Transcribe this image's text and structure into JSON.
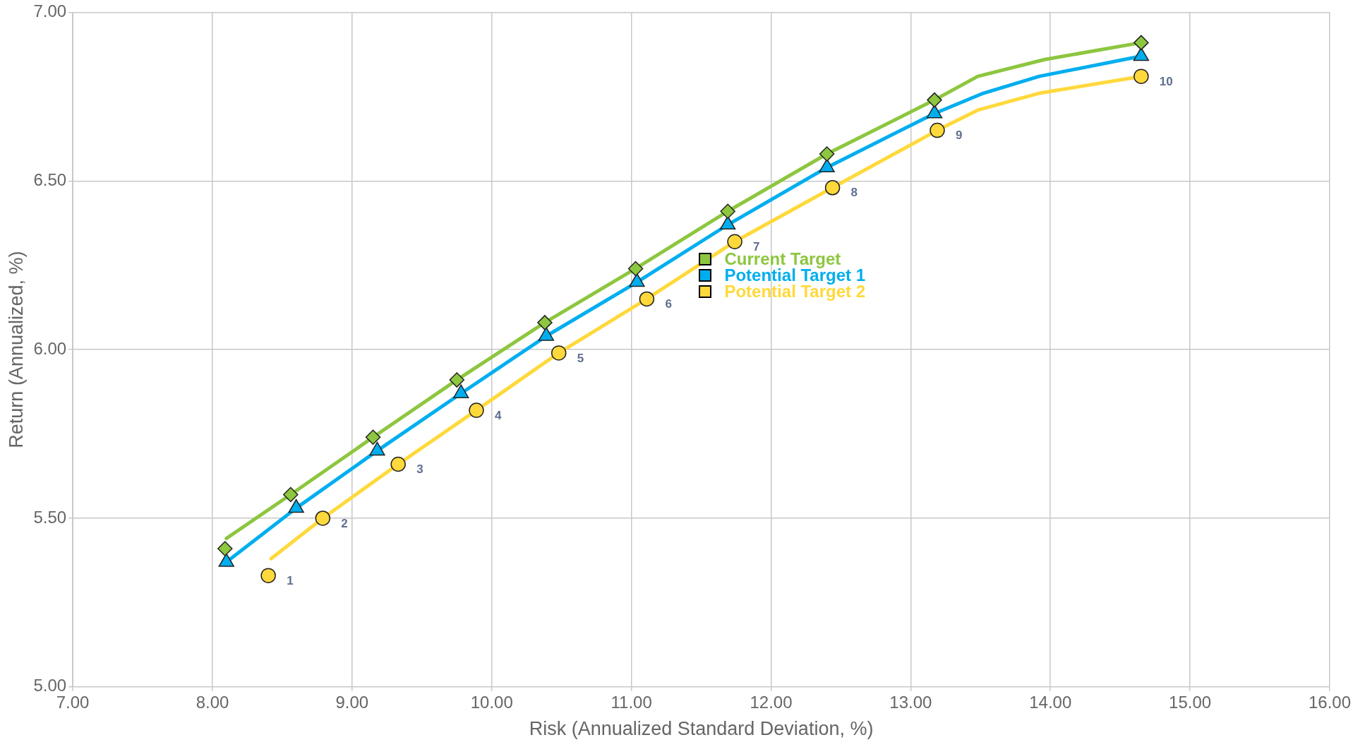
{
  "chart_data": {
    "type": "line",
    "xlabel": "Risk (Annualized Standard Deviation, %)",
    "ylabel": "Return (Annualized, %)",
    "xlim": [
      7,
      16
    ],
    "xticks": [
      {
        "value": 7,
        "label": "7.00"
      },
      {
        "value": 8,
        "label": "8.00"
      },
      {
        "value": 9,
        "label": "9.00"
      },
      {
        "value": 10,
        "label": "10.00"
      },
      {
        "value": 11,
        "label": "11.00"
      },
      {
        "value": 12,
        "label": "12.00"
      },
      {
        "value": 13,
        "label": "13.00"
      },
      {
        "value": 14,
        "label": "14.00"
      },
      {
        "value": 15,
        "label": "15.00"
      },
      {
        "value": 16,
        "label": "16.00"
      }
    ],
    "ylim": [
      5,
      7
    ],
    "yticks": [
      {
        "value": 5,
        "label": "5.00"
      },
      {
        "value": 5.5,
        "label": "5.50"
      },
      {
        "value": 6,
        "label": "6.00"
      },
      {
        "value": 6.5,
        "label": "6.50"
      },
      {
        "value": 7,
        "label": "7.00"
      }
    ],
    "grid": true,
    "legend": "center",
    "series": [
      {
        "name": "Current Target",
        "color": "#8dc63f",
        "marker": "none",
        "x": [
          8.1,
          8.56,
          9.15,
          9.75,
          10.38,
          11.03,
          11.69,
          12.4,
          13.17,
          13.48,
          13.96,
          14.65
        ],
        "values": [
          5.44,
          5.57,
          5.74,
          5.91,
          6.08,
          6.24,
          6.41,
          6.58,
          6.74,
          6.81,
          6.86,
          6.91
        ]
      },
      {
        "name": "Potential Target 1",
        "color": "#00aeef",
        "marker": "none",
        "x": [
          8.1,
          8.6,
          9.18,
          9.78,
          10.39,
          11.04,
          11.69,
          12.4,
          13.17,
          13.52,
          13.92,
          14.65
        ],
        "values": [
          5.37,
          5.53,
          5.7,
          5.87,
          6.04,
          6.2,
          6.37,
          6.54,
          6.7,
          6.76,
          6.81,
          6.87
        ]
      },
      {
        "name": "Potential Target 2",
        "color": "#ffd93b",
        "marker": "none",
        "x": [
          8.42,
          8.79,
          9.33,
          9.89,
          10.48,
          11.11,
          11.74,
          12.44,
          13.19,
          13.48,
          13.92,
          14.65
        ],
        "values": [
          5.38,
          5.5,
          5.66,
          5.82,
          5.99,
          6.15,
          6.32,
          6.48,
          6.65,
          6.71,
          6.76,
          6.81
        ]
      },
      {
        "type": "scatter",
        "color": "#8dc63f",
        "marker": "diamond",
        "x": [
          8.09,
          8.56,
          9.15,
          9.75,
          10.38,
          11.03,
          11.69,
          12.4,
          13.17,
          14.65
        ],
        "values": [
          5.41,
          5.57,
          5.74,
          5.91,
          6.08,
          6.24,
          6.41,
          6.58,
          6.74,
          6.91
        ]
      },
      {
        "type": "scatter",
        "color": "#00aeef",
        "marker": "triangle",
        "x": [
          8.1,
          8.6,
          9.18,
          9.78,
          10.39,
          11.04,
          11.69,
          12.4,
          13.17,
          14.65
        ],
        "values": [
          5.37,
          5.53,
          5.7,
          5.87,
          6.04,
          6.2,
          6.37,
          6.54,
          6.7,
          6.87
        ]
      },
      {
        "type": "scatter",
        "color": "#ffd93b",
        "marker": "circle",
        "x": [
          8.4,
          8.79,
          9.33,
          9.89,
          10.48,
          11.11,
          11.74,
          12.44,
          13.19,
          14.65
        ],
        "values": [
          5.33,
          5.5,
          5.66,
          5.82,
          5.99,
          6.15,
          6.32,
          6.48,
          6.65,
          6.81
        ]
      }
    ],
    "annotations": [
      {
        "text": "1",
        "x": 8.4,
        "y": 5.33
      },
      {
        "text": "2",
        "x": 8.79,
        "y": 5.5
      },
      {
        "text": "3",
        "x": 9.33,
        "y": 5.66
      },
      {
        "text": "4",
        "x": 9.89,
        "y": 5.82
      },
      {
        "text": "5",
        "x": 10.48,
        "y": 5.99
      },
      {
        "text": "6",
        "x": 11.11,
        "y": 6.15
      },
      {
        "text": "7",
        "x": 11.74,
        "y": 6.32
      },
      {
        "text": "8",
        "x": 12.44,
        "y": 6.48
      },
      {
        "text": "9",
        "x": 13.19,
        "y": 6.65
      },
      {
        "text": "10",
        "x": 14.65,
        "y": 6.81
      }
    ]
  }
}
